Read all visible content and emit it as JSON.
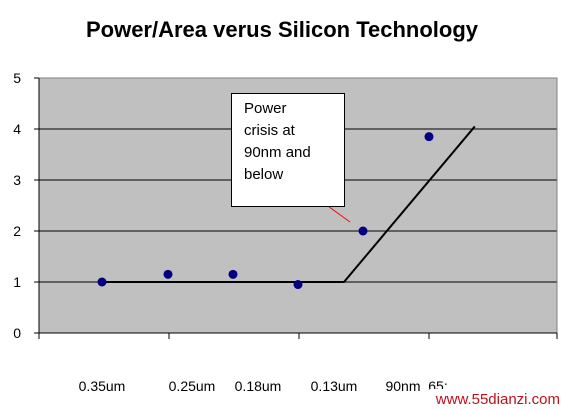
{
  "chart_data": {
    "type": "line",
    "title": "Power/Area verus Silicon Technology",
    "categories": [
      "0.35um",
      "0.25um",
      "0.18um",
      "0.13um",
      "90nm",
      "65"
    ],
    "category_labels_shown": [
      "0.35um",
      "0.25um",
      "0.18um",
      "0.13um",
      "90nm",
      "65:"
    ],
    "series": [
      {
        "values": [
          1.0,
          1.15,
          1.15,
          0.95,
          2.0,
          3.85
        ]
      }
    ],
    "trend_line": [
      [
        0.5,
        1.0
      ],
      [
        4.2,
        1.0
      ],
      [
        6.2,
        4.05
      ]
    ],
    "ylim": [
      0,
      5
    ],
    "yticks": [
      "0",
      "1",
      "2",
      "3",
      "4",
      "5"
    ],
    "grid": true,
    "legend": "none",
    "colors": {
      "plot_bg": "#c0c0c0",
      "point": "#000080",
      "line": "#000000",
      "callout_arrow": "#ff0000"
    }
  },
  "callout": {
    "text": "Power\ncrisis at\n90nm and\nbelow"
  },
  "watermark": "www.55dianzi.com"
}
